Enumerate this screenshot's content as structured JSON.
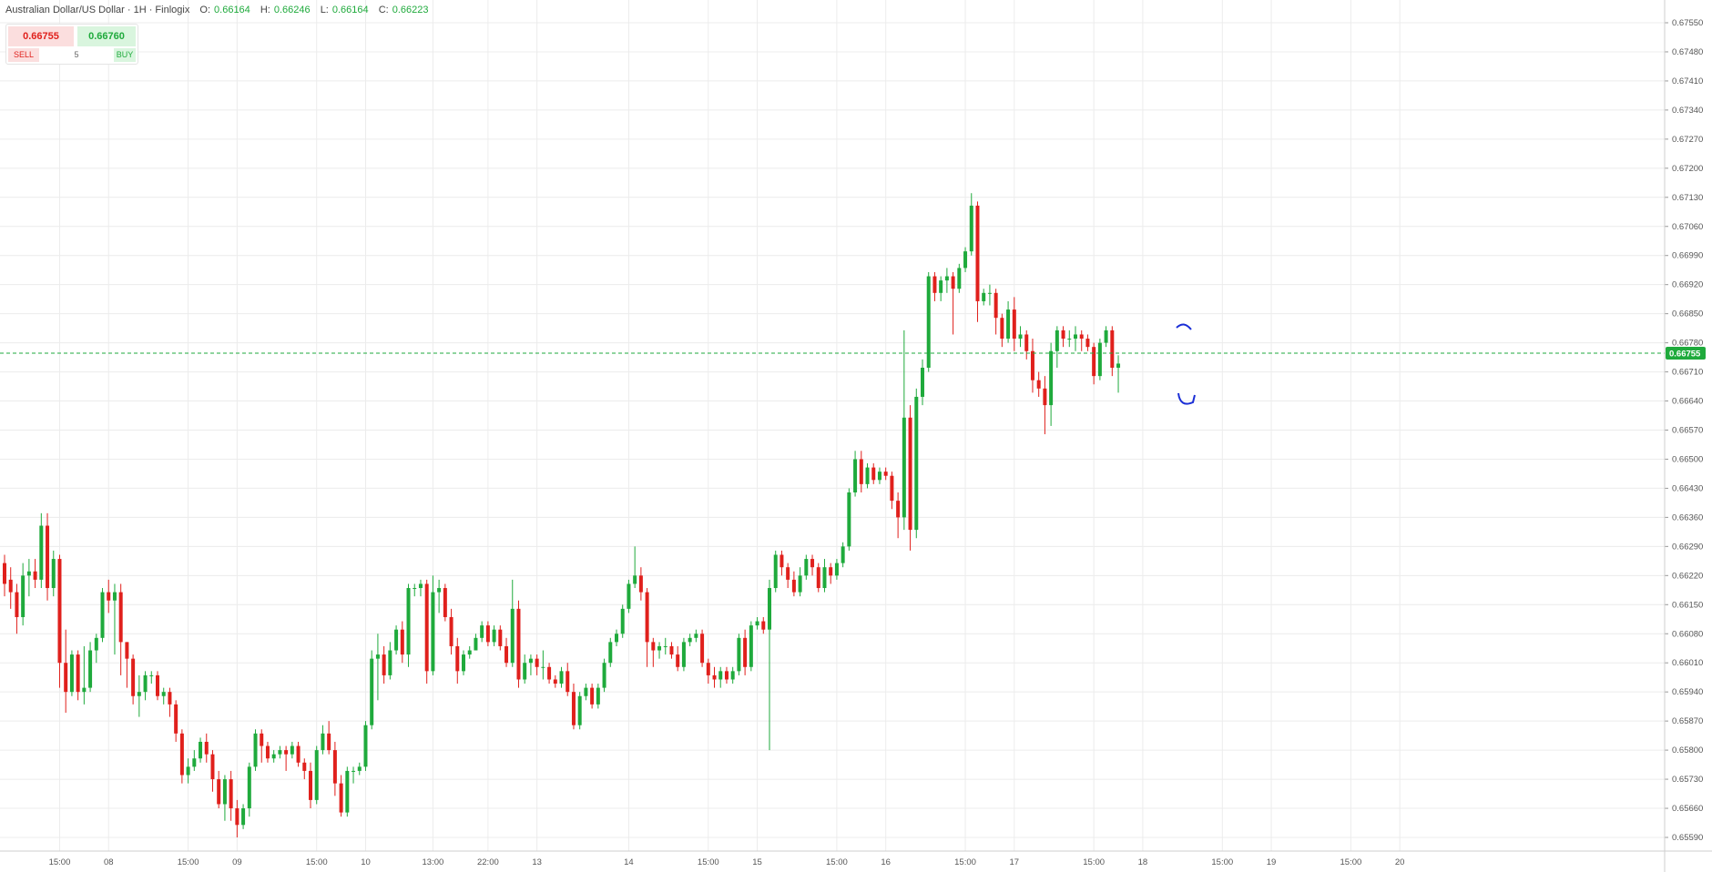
{
  "header": {
    "title": "Australian Dollar/US Dollar · 1H · Finlogix",
    "open_label": "O:",
    "open": "0.66164",
    "high_label": "H:",
    "high": "0.66246",
    "low_label": "L:",
    "low": "0.66164",
    "close_label": "C:",
    "close": "0.66223"
  },
  "trade": {
    "sell_price": "0.66755",
    "buy_price": "0.66760",
    "sell_label": "SELL",
    "buy_label": "BUY",
    "quantity": "5"
  },
  "colors": {
    "up": "#1faa3c",
    "down": "#e0201c",
    "grid": "#ececec",
    "price_line": "#1faa3c",
    "annotation": "#1a2ed6"
  },
  "chart_data": {
    "type": "candlestick",
    "title": "Australian Dollar/US Dollar · 1H · Finlogix",
    "ylim": [
      0.6556,
      0.6757
    ],
    "y_ticks": [
      "0.67550",
      "0.67480",
      "0.67410",
      "0.67340",
      "0.67270",
      "0.67200",
      "0.67130",
      "0.67060",
      "0.66990",
      "0.66920",
      "0.66850",
      "0.66780",
      "0.66710",
      "0.66640",
      "0.66570",
      "0.66500",
      "0.66430",
      "0.66360",
      "0.66290",
      "0.66220",
      "0.66150",
      "0.66080",
      "0.66010",
      "0.65940",
      "0.65870",
      "0.65800",
      "0.65730",
      "0.65660",
      "0.65590"
    ],
    "x_ticks": [
      {
        "label": "15:00",
        "i": 9
      },
      {
        "label": "08",
        "i": 17
      },
      {
        "label": "15:00",
        "i": 30
      },
      {
        "label": "09",
        "i": 38
      },
      {
        "label": "15:00",
        "i": 51
      },
      {
        "label": "10",
        "i": 59
      },
      {
        "label": "13:00",
        "i": 70
      },
      {
        "label": "22:00",
        "i": 79
      },
      {
        "label": "13",
        "i": 87
      },
      {
        "label": "14",
        "i": 102
      },
      {
        "label": "15:00",
        "i": 115
      },
      {
        "label": "15",
        "i": 123
      },
      {
        "label": "15:00",
        "i": 136
      },
      {
        "label": "16",
        "i": 144
      },
      {
        "label": "15:00",
        "i": 157
      },
      {
        "label": "17",
        "i": 165
      },
      {
        "label": "15:00",
        "i": 178
      },
      {
        "label": "18",
        "i": 186
      },
      {
        "label": "15:00",
        "i": 199
      },
      {
        "label": "19",
        "i": 207
      },
      {
        "label": "15:00",
        "i": 220
      },
      {
        "label": "20",
        "i": 228
      }
    ],
    "last_price": "0.66755",
    "last_value": 0.66755,
    "candles": [
      [
        0.6625,
        0.662,
        0.6627,
        0.6617
      ],
      [
        0.6621,
        0.6618,
        0.6624,
        0.6614
      ],
      [
        0.6618,
        0.6612,
        0.662,
        0.6608
      ],
      [
        0.6612,
        0.6622,
        0.6625,
        0.661
      ],
      [
        0.6622,
        0.6623,
        0.6626,
        0.6617
      ],
      [
        0.6623,
        0.6621,
        0.6626,
        0.6619
      ],
      [
        0.6621,
        0.6634,
        0.6637,
        0.6619
      ],
      [
        0.6634,
        0.6619,
        0.6637,
        0.6616
      ],
      [
        0.6619,
        0.6626,
        0.6628,
        0.6617
      ],
      [
        0.6626,
        0.6601,
        0.6627,
        0.6595
      ],
      [
        0.6601,
        0.6594,
        0.6609,
        0.6589
      ],
      [
        0.6594,
        0.6603,
        0.6604,
        0.6593
      ],
      [
        0.6603,
        0.6594,
        0.6604,
        0.6592
      ],
      [
        0.6594,
        0.6595,
        0.6605,
        0.6591
      ],
      [
        0.6595,
        0.6604,
        0.6606,
        0.6594
      ],
      [
        0.6604,
        0.6607,
        0.6608,
        0.6601
      ],
      [
        0.6607,
        0.6618,
        0.6619,
        0.6606
      ],
      [
        0.6618,
        0.6616,
        0.6621,
        0.6613
      ],
      [
        0.6616,
        0.6618,
        0.662,
        0.6603
      ],
      [
        0.6618,
        0.6606,
        0.662,
        0.6598
      ],
      [
        0.6606,
        0.6602,
        0.6606,
        0.6595
      ],
      [
        0.6602,
        0.6593,
        0.6603,
        0.6591
      ],
      [
        0.6593,
        0.6594,
        0.6598,
        0.6588
      ],
      [
        0.6594,
        0.6598,
        0.6599,
        0.6592
      ],
      [
        0.6598,
        0.6598,
        0.6599,
        0.6596
      ],
      [
        0.6598,
        0.6593,
        0.6599,
        0.6592
      ],
      [
        0.6593,
        0.6594,
        0.6595,
        0.6591
      ],
      [
        0.6594,
        0.6591,
        0.6595,
        0.6588
      ],
      [
        0.6591,
        0.6584,
        0.6592,
        0.6582
      ],
      [
        0.6584,
        0.6574,
        0.6585,
        0.6572
      ],
      [
        0.6574,
        0.6576,
        0.6578,
        0.6572
      ],
      [
        0.6576,
        0.6578,
        0.658,
        0.6575
      ],
      [
        0.6578,
        0.6582,
        0.6583,
        0.6577
      ],
      [
        0.6582,
        0.6579,
        0.6584,
        0.6577
      ],
      [
        0.6579,
        0.6573,
        0.658,
        0.657
      ],
      [
        0.6573,
        0.6567,
        0.6575,
        0.6566
      ],
      [
        0.6567,
        0.6573,
        0.6574,
        0.6563
      ],
      [
        0.6573,
        0.6566,
        0.6575,
        0.6563
      ],
      [
        0.6566,
        0.6562,
        0.6568,
        0.6559
      ],
      [
        0.6562,
        0.6566,
        0.6567,
        0.6561
      ],
      [
        0.6566,
        0.6576,
        0.6577,
        0.6564
      ],
      [
        0.6576,
        0.6584,
        0.6585,
        0.6575
      ],
      [
        0.6584,
        0.6581,
        0.6585,
        0.6577
      ],
      [
        0.6581,
        0.6578,
        0.6582,
        0.6577
      ],
      [
        0.6578,
        0.6579,
        0.658,
        0.6577
      ],
      [
        0.6579,
        0.658,
        0.6581,
        0.6578
      ],
      [
        0.658,
        0.6579,
        0.6581,
        0.6575
      ],
      [
        0.6579,
        0.6581,
        0.6582,
        0.6578
      ],
      [
        0.6581,
        0.6577,
        0.6582,
        0.6576
      ],
      [
        0.6577,
        0.6575,
        0.6578,
        0.6573
      ],
      [
        0.6575,
        0.6568,
        0.6577,
        0.6566
      ],
      [
        0.6568,
        0.658,
        0.6581,
        0.6567
      ],
      [
        0.658,
        0.6584,
        0.6586,
        0.6579
      ],
      [
        0.6584,
        0.658,
        0.6587,
        0.6579
      ],
      [
        0.658,
        0.6572,
        0.6582,
        0.6569
      ],
      [
        0.6572,
        0.6565,
        0.6574,
        0.6564
      ],
      [
        0.6565,
        0.6575,
        0.6576,
        0.6564
      ],
      [
        0.6575,
        0.6575,
        0.6576,
        0.6572
      ],
      [
        0.6575,
        0.6576,
        0.6577,
        0.6574
      ],
      [
        0.6576,
        0.6586,
        0.6587,
        0.6575
      ],
      [
        0.6586,
        0.6602,
        0.6604,
        0.6585
      ],
      [
        0.6602,
        0.6603,
        0.6608,
        0.6592
      ],
      [
        0.6603,
        0.6598,
        0.6605,
        0.6596
      ],
      [
        0.6598,
        0.6604,
        0.6606,
        0.6597
      ],
      [
        0.6604,
        0.6609,
        0.661,
        0.6603
      ],
      [
        0.6609,
        0.6603,
        0.6611,
        0.6601
      ],
      [
        0.6603,
        0.6619,
        0.662,
        0.66
      ],
      [
        0.6619,
        0.6619,
        0.662,
        0.6617
      ],
      [
        0.6619,
        0.662,
        0.6621,
        0.6617
      ],
      [
        0.662,
        0.6599,
        0.6621,
        0.6596
      ],
      [
        0.6599,
        0.6618,
        0.6622,
        0.6598
      ],
      [
        0.6618,
        0.6619,
        0.6621,
        0.6613
      ],
      [
        0.6619,
        0.6612,
        0.662,
        0.6611
      ],
      [
        0.6612,
        0.6605,
        0.6614,
        0.6603
      ],
      [
        0.6605,
        0.6599,
        0.6607,
        0.6596
      ],
      [
        0.6599,
        0.6603,
        0.6604,
        0.6598
      ],
      [
        0.6603,
        0.6604,
        0.6605,
        0.6602
      ],
      [
        0.6604,
        0.6607,
        0.6608,
        0.6604
      ],
      [
        0.6607,
        0.661,
        0.6611,
        0.6606
      ],
      [
        0.661,
        0.6606,
        0.6611,
        0.6605
      ],
      [
        0.6606,
        0.6609,
        0.661,
        0.6605
      ],
      [
        0.6609,
        0.6605,
        0.661,
        0.6604
      ],
      [
        0.6605,
        0.6601,
        0.6607,
        0.66
      ],
      [
        0.6601,
        0.6614,
        0.6621,
        0.66
      ],
      [
        0.6614,
        0.6597,
        0.6616,
        0.6595
      ],
      [
        0.6597,
        0.6601,
        0.6603,
        0.6596
      ],
      [
        0.6601,
        0.6602,
        0.6603,
        0.6598
      ],
      [
        0.6602,
        0.66,
        0.6603,
        0.6598
      ],
      [
        0.66,
        0.66,
        0.6604,
        0.6597
      ],
      [
        0.66,
        0.6597,
        0.6601,
        0.6596
      ],
      [
        0.6597,
        0.6596,
        0.6598,
        0.6595
      ],
      [
        0.6596,
        0.6599,
        0.66,
        0.6595
      ],
      [
        0.6599,
        0.6594,
        0.6601,
        0.6593
      ],
      [
        0.6594,
        0.6586,
        0.6596,
        0.6585
      ],
      [
        0.6586,
        0.6593,
        0.6594,
        0.6585
      ],
      [
        0.6593,
        0.6595,
        0.6596,
        0.6592
      ],
      [
        0.6595,
        0.6591,
        0.6596,
        0.659
      ],
      [
        0.6591,
        0.6595,
        0.6596,
        0.659
      ],
      [
        0.6595,
        0.6601,
        0.6602,
        0.6594
      ],
      [
        0.6601,
        0.6606,
        0.6607,
        0.66
      ],
      [
        0.6606,
        0.6608,
        0.6609,
        0.6605
      ],
      [
        0.6608,
        0.6614,
        0.6615,
        0.6607
      ],
      [
        0.6614,
        0.662,
        0.6621,
        0.6613
      ],
      [
        0.662,
        0.6622,
        0.6629,
        0.6619
      ],
      [
        0.6622,
        0.6618,
        0.6624,
        0.6616
      ],
      [
        0.6618,
        0.6606,
        0.6619,
        0.66
      ],
      [
        0.6606,
        0.6604,
        0.6607,
        0.66
      ],
      [
        0.6604,
        0.6605,
        0.6606,
        0.6602
      ],
      [
        0.6605,
        0.6605,
        0.6607,
        0.6603
      ],
      [
        0.6605,
        0.6603,
        0.6606,
        0.6602
      ],
      [
        0.6603,
        0.66,
        0.6605,
        0.6599
      ],
      [
        0.66,
        0.6606,
        0.6607,
        0.6599
      ],
      [
        0.6606,
        0.6607,
        0.6608,
        0.6605
      ],
      [
        0.6607,
        0.6608,
        0.6609,
        0.6606
      ],
      [
        0.6608,
        0.6601,
        0.6609,
        0.66
      ],
      [
        0.6601,
        0.6598,
        0.6602,
        0.6596
      ],
      [
        0.6598,
        0.6597,
        0.66,
        0.6595
      ],
      [
        0.6597,
        0.6599,
        0.66,
        0.6595
      ],
      [
        0.6599,
        0.6597,
        0.66,
        0.6596
      ],
      [
        0.6597,
        0.6599,
        0.66,
        0.6596
      ],
      [
        0.6599,
        0.6607,
        0.6608,
        0.6598
      ],
      [
        0.6607,
        0.66,
        0.6609,
        0.6598
      ],
      [
        0.66,
        0.661,
        0.6611,
        0.6599
      ],
      [
        0.661,
        0.6611,
        0.6612,
        0.6609
      ],
      [
        0.6611,
        0.6609,
        0.6612,
        0.6608
      ],
      [
        0.6609,
        0.6619,
        0.6621,
        0.658
      ],
      [
        0.6619,
        0.6627,
        0.6628,
        0.6618
      ],
      [
        0.6627,
        0.6624,
        0.6628,
        0.6622
      ],
      [
        0.6624,
        0.6621,
        0.6625,
        0.6619
      ],
      [
        0.6621,
        0.6618,
        0.6623,
        0.6617
      ],
      [
        0.6618,
        0.6622,
        0.6624,
        0.6617
      ],
      [
        0.6622,
        0.6626,
        0.6627,
        0.6621
      ],
      [
        0.6626,
        0.6624,
        0.6627,
        0.6622
      ],
      [
        0.6624,
        0.6619,
        0.6625,
        0.6618
      ],
      [
        0.6619,
        0.6624,
        0.6626,
        0.6618
      ],
      [
        0.6624,
        0.6622,
        0.6625,
        0.662
      ],
      [
        0.6622,
        0.6625,
        0.6626,
        0.6621
      ],
      [
        0.6625,
        0.6629,
        0.663,
        0.6624
      ],
      [
        0.6629,
        0.6642,
        0.6643,
        0.6628
      ],
      [
        0.6642,
        0.665,
        0.6652,
        0.6641
      ],
      [
        0.665,
        0.6644,
        0.6652,
        0.6642
      ],
      [
        0.6644,
        0.6648,
        0.6649,
        0.6643
      ],
      [
        0.6648,
        0.6645,
        0.6649,
        0.6644
      ],
      [
        0.6645,
        0.6647,
        0.6648,
        0.6644
      ],
      [
        0.6647,
        0.6646,
        0.6648,
        0.6645
      ],
      [
        0.6646,
        0.664,
        0.6647,
        0.6638
      ],
      [
        0.664,
        0.6636,
        0.6642,
        0.6631
      ],
      [
        0.6636,
        0.666,
        0.6681,
        0.6633
      ],
      [
        0.666,
        0.6633,
        0.6663,
        0.6628
      ],
      [
        0.6633,
        0.6665,
        0.6667,
        0.6631
      ],
      [
        0.6665,
        0.6672,
        0.6674,
        0.6663
      ],
      [
        0.6672,
        0.6694,
        0.6695,
        0.6671
      ],
      [
        0.6694,
        0.669,
        0.6695,
        0.6688
      ],
      [
        0.669,
        0.6693,
        0.6694,
        0.6688
      ],
      [
        0.6693,
        0.6694,
        0.6696,
        0.669
      ],
      [
        0.6694,
        0.6691,
        0.6695,
        0.668
      ],
      [
        0.6691,
        0.6696,
        0.6697,
        0.669
      ],
      [
        0.6696,
        0.67,
        0.6701,
        0.6695
      ],
      [
        0.67,
        0.6711,
        0.6714,
        0.6699
      ],
      [
        0.6711,
        0.6688,
        0.6712,
        0.6683
      ],
      [
        0.6688,
        0.669,
        0.6691,
        0.6687
      ],
      [
        0.669,
        0.669,
        0.6692,
        0.6687
      ],
      [
        0.669,
        0.6684,
        0.6691,
        0.668
      ],
      [
        0.6684,
        0.6679,
        0.6685,
        0.6677
      ],
      [
        0.6679,
        0.6686,
        0.6688,
        0.6678
      ],
      [
        0.6686,
        0.6679,
        0.6689,
        0.6676
      ],
      [
        0.6679,
        0.668,
        0.6682,
        0.6677
      ],
      [
        0.668,
        0.6676,
        0.6681,
        0.6674
      ],
      [
        0.6676,
        0.6669,
        0.6679,
        0.6666
      ],
      [
        0.6669,
        0.6667,
        0.6671,
        0.6665
      ],
      [
        0.6667,
        0.6663,
        0.667,
        0.6656
      ],
      [
        0.6663,
        0.6676,
        0.6678,
        0.6658
      ],
      [
        0.6676,
        0.6681,
        0.6682,
        0.6672
      ],
      [
        0.6681,
        0.6679,
        0.6682,
        0.6677
      ],
      [
        0.6679,
        0.6679,
        0.6681,
        0.6677
      ],
      [
        0.6679,
        0.668,
        0.6682,
        0.6676
      ],
      [
        0.668,
        0.6679,
        0.6681,
        0.6676
      ],
      [
        0.6679,
        0.6677,
        0.668,
        0.6676
      ],
      [
        0.6677,
        0.667,
        0.6678,
        0.6668
      ],
      [
        0.667,
        0.6678,
        0.6679,
        0.6669
      ],
      [
        0.6678,
        0.6681,
        0.6682,
        0.6677
      ],
      [
        0.6681,
        0.6672,
        0.6682,
        0.667
      ],
      [
        0.6672,
        0.6673,
        0.6675,
        0.6666
      ]
    ]
  }
}
